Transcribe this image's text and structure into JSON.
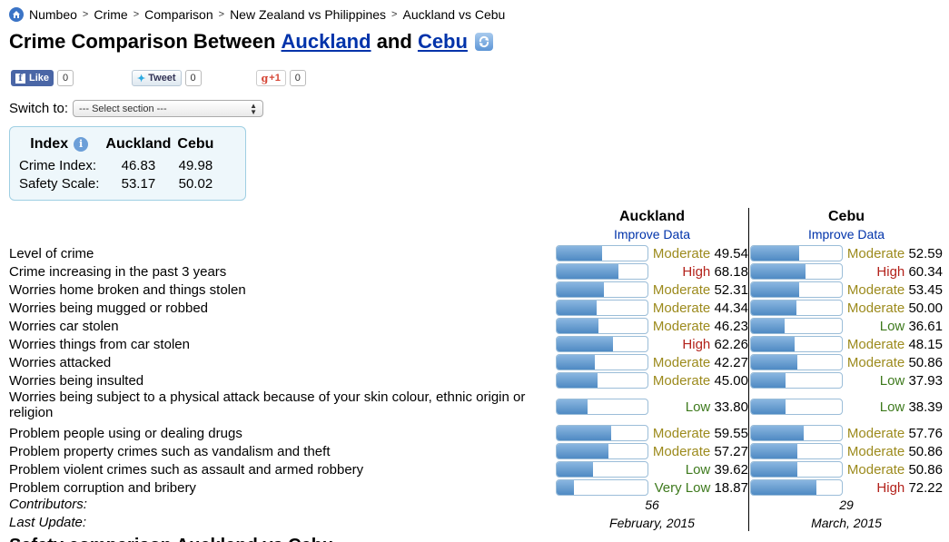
{
  "breadcrumb": {
    "items": [
      "Numbeo",
      "Crime",
      "Comparison",
      "New Zealand vs Philippines",
      "Auckland vs Cebu"
    ],
    "separator": ">"
  },
  "title": {
    "prefix": "Crime Comparison Between",
    "city1": "Auckland",
    "joiner": "and",
    "city2": "Cebu"
  },
  "social": {
    "facebook_label": "Like",
    "facebook_count": "0",
    "twitter_label": "Tweet",
    "twitter_count": "0",
    "gplus_label": "+1",
    "gplus_count": "0"
  },
  "switch": {
    "label": "Switch to:",
    "selected": "--- Select section ---"
  },
  "index_box": {
    "header": [
      "Index",
      "Auckland",
      "Cebu"
    ],
    "rows": [
      {
        "label": "Crime Index:",
        "city1": "46.83",
        "city2": "49.98"
      },
      {
        "label": "Safety Scale:",
        "city1": "53.17",
        "city2": "50.02"
      }
    ]
  },
  "comparison": {
    "city1": "Auckland",
    "city2": "Cebu",
    "improve_label": "Improve Data",
    "rows": [
      {
        "label": "Level of crime",
        "c1_level": "Moderate",
        "c1_value": 49.54,
        "c2_level": "Moderate",
        "c2_value": 52.59
      },
      {
        "label": "Crime increasing in the past 3 years",
        "c1_level": "High",
        "c1_value": 68.18,
        "c2_level": "High",
        "c2_value": 60.34
      },
      {
        "label": "Worries home broken and things stolen",
        "c1_level": "Moderate",
        "c1_value": 52.31,
        "c2_level": "Moderate",
        "c2_value": 53.45
      },
      {
        "label": "Worries being mugged or robbed",
        "c1_level": "Moderate",
        "c1_value": 44.34,
        "c2_level": "Moderate",
        "c2_value": 50.0
      },
      {
        "label": "Worries car stolen",
        "c1_level": "Moderate",
        "c1_value": 46.23,
        "c2_level": "Low",
        "c2_value": 36.61
      },
      {
        "label": "Worries things from car stolen",
        "c1_level": "High",
        "c1_value": 62.26,
        "c2_level": "Moderate",
        "c2_value": 48.15
      },
      {
        "label": "Worries attacked",
        "c1_level": "Moderate",
        "c1_value": 42.27,
        "c2_level": "Moderate",
        "c2_value": 50.86
      },
      {
        "label": "Worries being insulted",
        "c1_level": "Moderate",
        "c1_value": 45.0,
        "c2_level": "Low",
        "c2_value": 37.93
      },
      {
        "label": "Worries being subject to a physical attack because of your skin colour, ethnic origin or religion",
        "c1_level": "Low",
        "c1_value": 33.8,
        "c2_level": "Low",
        "c2_value": 38.39
      },
      {
        "label": "Problem people using or dealing drugs",
        "c1_level": "Moderate",
        "c1_value": 59.55,
        "c2_level": "Moderate",
        "c2_value": 57.76
      },
      {
        "label": "Problem property crimes such as vandalism and theft",
        "c1_level": "Moderate",
        "c1_value": 57.27,
        "c2_level": "Moderate",
        "c2_value": 50.86
      },
      {
        "label": "Problem violent crimes such as assault and armed robbery",
        "c1_level": "Low",
        "c1_value": 39.62,
        "c2_level": "Moderate",
        "c2_value": 50.86
      },
      {
        "label": "Problem corruption and bribery",
        "c1_level": "Very Low",
        "c1_value": 18.87,
        "c2_level": "High",
        "c2_value": 72.22
      }
    ],
    "contributors_label": "Contributors:",
    "contributors": [
      "56",
      "29"
    ],
    "last_update_label": "Last Update:",
    "last_update": [
      "February, 2015",
      "March, 2015"
    ]
  },
  "next_section_heading": "Safety comparison Auckland vs Cebu"
}
